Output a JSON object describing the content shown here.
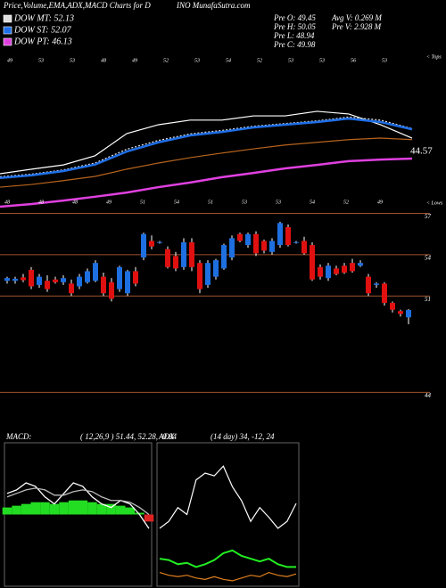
{
  "header": {
    "title_left": "Price,Volume,EMA,ADX,MACD Charts for D",
    "title_right": "INO MunafaSutra.com",
    "pre": [
      "Pre  O: 49.45",
      "Pre  H: 50.05",
      "Pre  L: 48.94",
      "Pre  C: 49.98"
    ],
    "vol": [
      "Avg V: 0.269 M",
      "Pre  V: 2.928 M"
    ]
  },
  "chart_data": [
    {
      "type": "line",
      "annotations": [
        "< Tops",
        "< Lows"
      ],
      "tops": [
        "49",
        "53",
        "53",
        "48",
        "49",
        "52",
        "53",
        "54",
        "52",
        "53",
        "53",
        "56",
        "53"
      ],
      "lows": [
        "48",
        "48",
        "48",
        "49",
        "51",
        "54",
        "51",
        "53",
        "53",
        "54",
        "52",
        "49"
      ],
      "ylim": [
        31.3,
        72
      ],
      "series": [
        {
          "color": "#ffffff",
          "values": [
            40.6,
            41.8,
            42.9,
            45.3,
            51.1,
            53.4,
            54.6,
            54.6,
            55.7,
            55.7,
            56.9,
            56.2,
            53.4,
            49.9
          ]
        },
        {
          "name": "DOW MT: 52.13",
          "color": "#dddddd",
          "dash": true,
          "values": [
            39.8,
            40.5,
            41.6,
            43.4,
            47.0,
            49.3,
            51.0,
            51.9,
            53.0,
            53.7,
            54.4,
            55.4,
            54.6,
            52.4
          ]
        },
        {
          "name": "DOW ST: 52.07",
          "color": "#1f6fe8",
          "values": [
            39.5,
            40.2,
            41.3,
            43.0,
            46.4,
            48.8,
            50.6,
            51.5,
            52.7,
            53.4,
            54.1,
            55.0,
            54.1,
            52.2
          ]
        },
        {
          "color": "#b8641e",
          "values": [
            37.1,
            37.8,
            38.8,
            39.9,
            41.8,
            43.4,
            44.8,
            46.0,
            47.1,
            48.1,
            48.8,
            49.5,
            49.9,
            49.5
          ]
        },
        {
          "name": "DOW PT: 46.13",
          "color": "#e040e0",
          "values": [
            32.0,
            32.7,
            33.6,
            34.6,
            35.7,
            37.1,
            38.3,
            39.7,
            40.8,
            42.0,
            42.9,
            43.9,
            44.3,
            44.57
          ]
        }
      ]
    },
    {
      "type": "candlestick",
      "ylim": [
        43.7,
        57.1
      ],
      "yticks": [
        57,
        54,
        51,
        44
      ],
      "grid": true,
      "up_color": "#1e6fe0",
      "down_color": "#e01010",
      "open": [
        52.1,
        52.1,
        52.35,
        52.9,
        51.8,
        52.1,
        52.2,
        52.0,
        51.9,
        51.7,
        52.0,
        52.1,
        52.4,
        52.0,
        51.5,
        51.2,
        52.8,
        53.8,
        55.0,
        54.9,
        54.4,
        53.9,
        53.1,
        54.9,
        53.4,
        51.8,
        52.4,
        53.0,
        53.8,
        55.5,
        54.7,
        55.5,
        55.0,
        54.2,
        54.7,
        56.0,
        54.9,
        55.0,
        54.7,
        53.1,
        52.3,
        53.0,
        53.2,
        53.4,
        53.2,
        52.4,
        51.8,
        51.9,
        50.5,
        49.9,
        49.45
      ],
      "high": [
        52.4,
        52.4,
        52.6,
        53.1,
        52.6,
        52.5,
        52.4,
        52.5,
        52.2,
        52.6,
        53.0,
        53.6,
        52.7,
        52.3,
        53.2,
        52.9,
        53.1,
        55.6,
        55.4,
        55.0,
        54.6,
        54.2,
        55.2,
        55.2,
        53.6,
        53.6,
        53.7,
        54.8,
        55.4,
        55.6,
        55.6,
        55.7,
        55.1,
        55.2,
        56.4,
        56.2,
        55.0,
        55.3,
        54.9,
        53.3,
        53.4,
        53.2,
        53.4,
        53.7,
        53.6,
        52.6,
        52.0,
        52.0,
        50.6,
        50.0,
        50.05
      ],
      "low": [
        51.9,
        51.9,
        52.0,
        51.5,
        51.6,
        51.3,
        51.9,
        51.8,
        51.0,
        51.5,
        51.9,
        52.0,
        51.0,
        50.6,
        51.3,
        51.0,
        51.7,
        53.6,
        54.4,
        54.8,
        53.0,
        52.8,
        52.9,
        52.8,
        51.2,
        51.6,
        52.2,
        52.9,
        53.6,
        54.9,
        54.5,
        53.9,
        54.1,
        54.0,
        54.5,
        54.6,
        54.8,
        54.0,
        52.1,
        52.2,
        52.1,
        52.5,
        52.6,
        52.7,
        53.1,
        51.0,
        51.6,
        50.3,
        49.8,
        49.5,
        48.94
      ],
      "close": [
        52.3,
        52.25,
        52.15,
        51.7,
        52.4,
        51.5,
        52.0,
        52.3,
        51.2,
        52.4,
        52.8,
        53.4,
        51.2,
        50.8,
        53.1,
        52.8,
        51.9,
        55.5,
        54.6,
        54.92,
        53.1,
        53.0,
        54.9,
        53.1,
        51.5,
        53.4,
        53.6,
        54.7,
        55.2,
        55.0,
        55.5,
        54.1,
        54.3,
        55.0,
        56.3,
        54.7,
        54.92,
        54.1,
        52.2,
        52.4,
        53.2,
        52.6,
        52.7,
        52.8,
        53.4,
        51.2,
        51.9,
        50.5,
        50.0,
        49.7,
        49.98
      ]
    },
    {
      "type": "macd",
      "title": "MACD:",
      "params": "( 12,26,9 ) 51.44, 52.28, -0.84",
      "ylim": [
        -2.04,
        2.04
      ],
      "hist_color": "#22dd22",
      "series": [
        {
          "color": "#ffffff",
          "values": [
            0.6,
            0.7,
            0.9,
            0.8,
            0.5,
            0.3,
            0.6,
            0.9,
            0.8,
            0.5,
            0.3,
            0.2,
            0.4,
            0.3,
            0.0,
            -0.4
          ]
        },
        {
          "color": "#bbbbbb",
          "values": [
            0.5,
            0.6,
            0.7,
            0.75,
            0.7,
            0.55,
            0.55,
            0.65,
            0.7,
            0.65,
            0.5,
            0.4,
            0.4,
            0.35,
            0.2,
            0.0
          ]
        }
      ],
      "hist": [
        0.2,
        0.25,
        0.3,
        0.35,
        0.35,
        0.3,
        0.35,
        0.4,
        0.4,
        0.35,
        0.3,
        0.3,
        0.25,
        0.2,
        0.05,
        -0.2
      ]
    },
    {
      "type": "line",
      "title": "ADX",
      "params": "(14 day) 34, -12, 24",
      "ylim": [
        0,
        100
      ],
      "series": [
        {
          "color": "#ffffff",
          "values": [
            40,
            45,
            55,
            50,
            75,
            80,
            78,
            85,
            70,
            60,
            45,
            55,
            48,
            40,
            45,
            58
          ]
        },
        {
          "color": "#22ee22",
          "values": [
            18,
            17,
            14,
            15,
            12,
            14,
            17,
            22,
            24,
            20,
            18,
            16,
            18,
            14,
            12,
            12
          ]
        },
        {
          "color": "#e08020",
          "values": [
            8,
            6,
            5,
            6,
            4,
            3,
            5,
            3,
            2,
            4,
            6,
            5,
            8,
            6,
            5,
            7
          ]
        }
      ]
    }
  ]
}
